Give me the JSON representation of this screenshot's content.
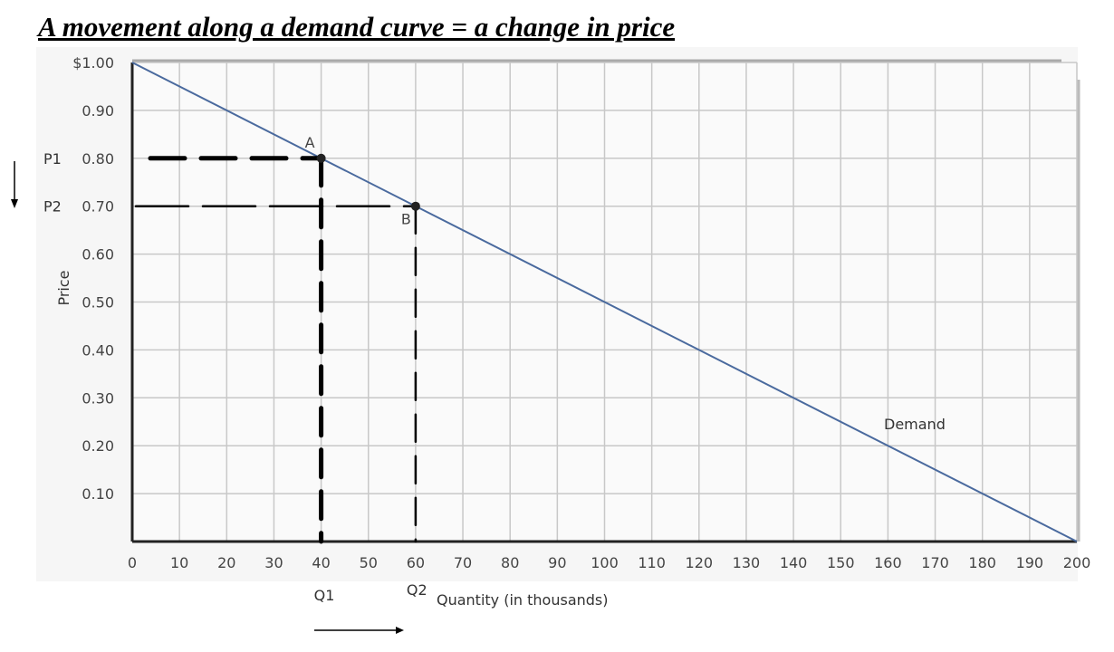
{
  "chart_data": {
    "type": "line",
    "title": "A movement along a demand curve = a change in price",
    "xlabel": "Quantity (in thousands)",
    "ylabel": "Price",
    "xlim": [
      0,
      200
    ],
    "ylim": [
      0,
      1.0
    ],
    "grid": true,
    "x_ticks": [
      "0",
      "10",
      "20",
      "30",
      "40",
      "50",
      "60",
      "70",
      "80",
      "90",
      "100",
      "110",
      "120",
      "130",
      "140",
      "150",
      "160",
      "170",
      "180",
      "190",
      "200"
    ],
    "y_ticks": [
      "$1.00",
      "0.90",
      "0.80",
      "0.70",
      "0.60",
      "0.50",
      "0.40",
      "0.30",
      "0.20",
      "0.10"
    ],
    "y_tick_values": [
      1.0,
      0.9,
      0.8,
      0.7,
      0.6,
      0.5,
      0.4,
      0.3,
      0.2,
      0.1
    ],
    "series": [
      {
        "name": "Demand",
        "x": [
          0,
          200
        ],
        "y": [
          1.0,
          0.0
        ],
        "color": "#4a6a9e"
      }
    ],
    "points": [
      {
        "label": "A",
        "x": 40,
        "y": 0.8,
        "price_label": "P1",
        "quantity_label": "Q1"
      },
      {
        "label": "B",
        "x": 60,
        "y": 0.7,
        "price_label": "P2",
        "quantity_label": "Q2"
      }
    ],
    "annotations": {
      "price_arrow": "down",
      "quantity_arrow": "right"
    }
  }
}
